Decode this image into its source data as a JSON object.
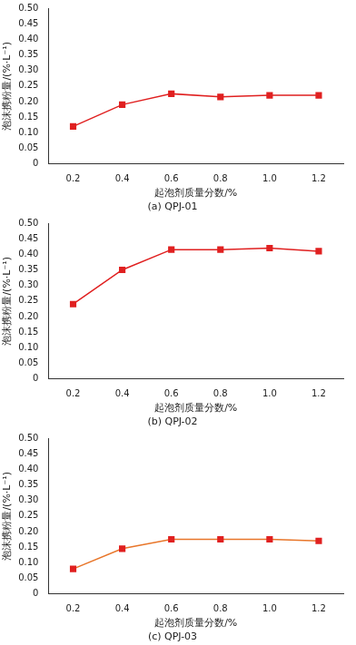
{
  "chart_data": [
    {
      "type": "line",
      "title": "(a) QPJ-01",
      "x_label": "起泡剂质量分数/%",
      "y_label": "泡沫携粉量/(%·L⁻¹)",
      "categories": [
        "0.2",
        "0.4",
        "0.6",
        "0.8",
        "1.0",
        "1.2"
      ],
      "series": [
        {
          "color": "#e02020",
          "values": [
            0.12,
            0.19,
            0.225,
            0.215,
            0.22,
            0.22
          ]
        }
      ],
      "marker": "square",
      "grid": false,
      "ylim": [
        0,
        0.5
      ],
      "yticks": [
        0,
        0.05,
        {
          "value": 0.1,
          "label": "0.10"
        },
        0.15,
        {
          "value": 0.2,
          "label": "0.20"
        },
        0.25,
        {
          "value": 0.3,
          "label": "0.30"
        },
        0.35,
        {
          "value": 0.4,
          "label": "0.40"
        },
        0.45,
        {
          "value": 0.5,
          "label": "0.50"
        }
      ]
    },
    {
      "type": "line",
      "title": "(b) QPJ-02",
      "x_label": "起泡剂质量分数/%",
      "y_label": "泡沫携粉量/(%·L⁻¹)",
      "categories": [
        "0.2",
        "0.4",
        "0.6",
        "0.8",
        "1.0",
        "1.2"
      ],
      "series": [
        {
          "color": "#e02020",
          "values": [
            0.24,
            0.35,
            0.415,
            0.415,
            0.42,
            0.41
          ]
        }
      ],
      "marker": "square",
      "grid": false,
      "ylim": [
        0,
        0.5
      ],
      "yticks": [
        0,
        0.05,
        {
          "value": 0.1,
          "label": "0.10"
        },
        0.15,
        {
          "value": 0.2,
          "label": "0.20"
        },
        0.25,
        {
          "value": 0.3,
          "label": "0.30"
        },
        0.35,
        {
          "value": 0.4,
          "label": "0.40"
        },
        0.45,
        {
          "value": 0.5,
          "label": "0.50"
        }
      ]
    },
    {
      "type": "line",
      "title": "(c) QPJ-03",
      "x_label": "起泡剂质量分数/%",
      "y_label": "泡沫携粉量/(%·L⁻¹)",
      "categories": [
        "0.2",
        "0.4",
        "0.6",
        "0.8",
        "1.0",
        "1.2"
      ],
      "series": [
        {
          "color": "#e8762a",
          "values": [
            0.08,
            0.145,
            0.175,
            0.175,
            0.175,
            0.17
          ]
        }
      ],
      "marker": "square",
      "grid": false,
      "ylim": [
        0,
        0.5
      ],
      "yticks": [
        0,
        0.05,
        {
          "value": 0.1,
          "label": "0.10"
        },
        0.15,
        {
          "value": 0.2,
          "label": "0.20"
        },
        0.25,
        {
          "value": 0.3,
          "label": "0.30"
        },
        0.35,
        {
          "value": 0.4,
          "label": "0.40"
        },
        0.45,
        {
          "value": 0.5,
          "label": "0.50"
        }
      ]
    }
  ]
}
